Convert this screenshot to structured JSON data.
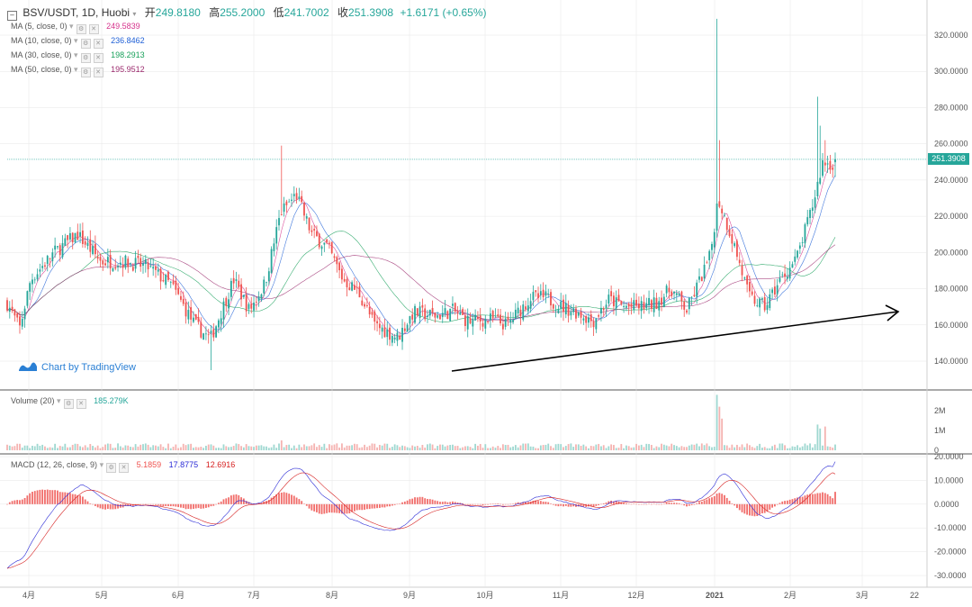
{
  "header": {
    "symbol": "BSV/USDT, 1D, Huobi",
    "open_label": "开",
    "open": "249.8180",
    "high_label": "高",
    "high": "255.2000",
    "low_label": "低",
    "low": "241.7002",
    "close_label": "收",
    "close": "251.3908",
    "change": "+1.6171 (+0.65%)"
  },
  "indicators": [
    {
      "label": "MA (5, close, 0)",
      "value": "249.5839",
      "color": "#d6338c"
    },
    {
      "label": "MA (10, close, 0)",
      "value": "236.8462",
      "color": "#1e5fd6"
    },
    {
      "label": "MA (30, close, 0)",
      "value": "198.2913",
      "color": "#18a05a"
    },
    {
      "label": "MA (50, close, 0)",
      "value": "195.9512",
      "color": "#9c2b6e"
    }
  ],
  "volume_legend": {
    "label": "Volume (20)",
    "value": "185.279K"
  },
  "macd_legend": {
    "label": "MACD (12, 26, close, 9)",
    "hist": "5.1859",
    "macd": "17.8775",
    "signal": "12.6916"
  },
  "price_badge": "251.3908",
  "watermark": "Chart by TradingView",
  "price_axis": [
    "320.0000",
    "300.0000",
    "280.0000",
    "260.0000",
    "240.0000",
    "220.0000",
    "200.0000",
    "180.0000",
    "160.0000",
    "140.0000"
  ],
  "volume_axis": [
    "2M",
    "1M",
    "0"
  ],
  "macd_axis": [
    "20.0000",
    "10.0000",
    "0.0000",
    "-10.0000",
    "-20.0000",
    "-30.0000"
  ],
  "time_axis": [
    "4月",
    "5月",
    "6月",
    "7月",
    "8月",
    "9月",
    "10月",
    "11月",
    "12月",
    "2021",
    "2月",
    "3月",
    "22"
  ],
  "colors": {
    "up": "#26a69a",
    "down": "#ef5350",
    "grid": "#e6e6e6"
  },
  "chart_data": {
    "type": "candlestick",
    "price_range": [
      130,
      330
    ],
    "last_price": 251.3908,
    "ma_values_last": {
      "ma5": 249.5839,
      "ma10": 236.8462,
      "ma30": 198.2913,
      "ma50": 195.9512
    },
    "volume_last": "185.279K",
    "macd_last": {
      "histogram": 5.1859,
      "macd": 17.8775,
      "signal": 12.6916
    },
    "price_ticks": [
      320,
      300,
      280,
      260,
      240,
      220,
      200,
      180,
      160,
      140
    ],
    "volume_ticks": [
      2000000,
      1000000,
      0
    ],
    "macd_ticks": [
      20,
      10,
      0,
      -10,
      -20,
      -30
    ],
    "x_ticks": [
      "4月",
      "5月",
      "6月",
      "7月",
      "8月",
      "9月",
      "10月",
      "11月",
      "12月",
      "2021",
      "2月",
      "3月",
      "22"
    ]
  }
}
